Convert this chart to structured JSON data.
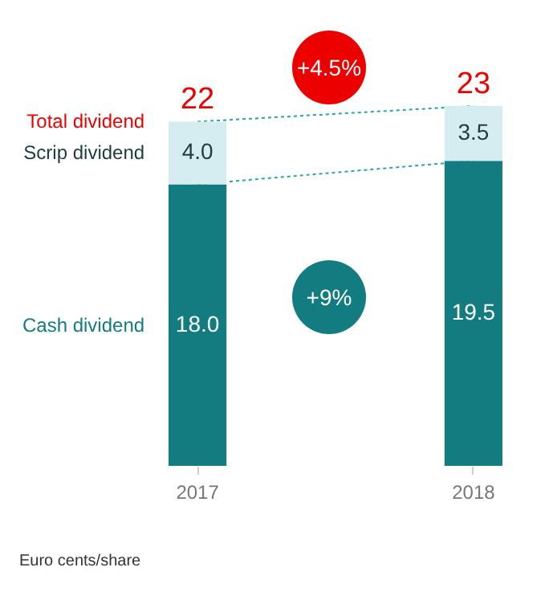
{
  "chart_data": {
    "type": "bar",
    "stacked": true,
    "categories": [
      "2017",
      "2018"
    ],
    "series": [
      {
        "name": "Cash dividend",
        "color": "#137c80",
        "values": [
          18.0,
          19.5
        ],
        "value_labels": [
          "18.0",
          "19.5"
        ]
      },
      {
        "name": "Scrip dividend",
        "color": "#d5edf1",
        "values": [
          4.0,
          3.5
        ],
        "value_labels": [
          "4.0",
          "3.5"
        ]
      }
    ],
    "totals": [
      "22",
      "23"
    ],
    "annotations": [
      "Total dividend",
      "+4.5%",
      "+9%",
      "Euro cents/share"
    ]
  }
}
